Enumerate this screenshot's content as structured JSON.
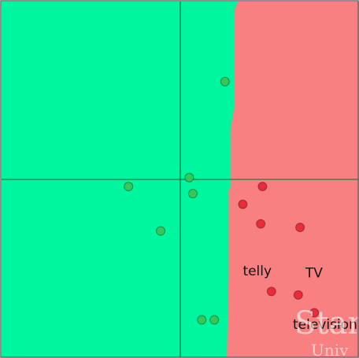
{
  "colors": {
    "green_region": "#00f59f",
    "red_region": "#f98080",
    "green_point": "#35c75a",
    "red_point": "#ea2b3a",
    "axis_line": "#1f7a4a",
    "frame": "#6a6a6a"
  },
  "chart_data": {
    "type": "scatter",
    "title": "",
    "xlabel": "",
    "ylabel": "",
    "xlim": [
      -1,
      1
    ],
    "ylim": [
      -1,
      1
    ],
    "grid": false,
    "legend": "none",
    "decision_boundary": [
      [
        0.32,
        1.0
      ],
      [
        0.3,
        0.95
      ],
      [
        0.3,
        0.4
      ],
      [
        0.28,
        0.28
      ],
      [
        0.28,
        -0.05
      ],
      [
        0.27,
        -0.06
      ],
      [
        0.27,
        -0.55
      ],
      [
        0.26,
        -1.0
      ]
    ],
    "series": [
      {
        "class": "green",
        "points": [
          [
            0.25,
            0.55
          ],
          [
            0.05,
            0.01
          ],
          [
            -0.29,
            -0.04
          ],
          [
            0.07,
            -0.08
          ],
          [
            -0.11,
            -0.29
          ],
          [
            0.12,
            -0.79
          ],
          [
            0.19,
            -0.79
          ]
        ]
      },
      {
        "class": "red",
        "points": [
          [
            0.46,
            -0.04
          ],
          [
            0.35,
            -0.14
          ],
          [
            0.45,
            -0.25
          ],
          [
            0.67,
            -0.27
          ],
          [
            0.51,
            -0.63
          ],
          [
            0.66,
            -0.65
          ],
          [
            0.75,
            -0.75
          ]
        ]
      }
    ],
    "annotations": [
      {
        "text": "telly",
        "x": 0.35,
        "y": -0.54
      },
      {
        "text": "TV",
        "x": 0.7,
        "y": -0.55
      },
      {
        "text": "television",
        "x": 0.63,
        "y": -0.84
      }
    ]
  },
  "watermark": {
    "line1": "Stan",
    "line2": "Univ"
  }
}
